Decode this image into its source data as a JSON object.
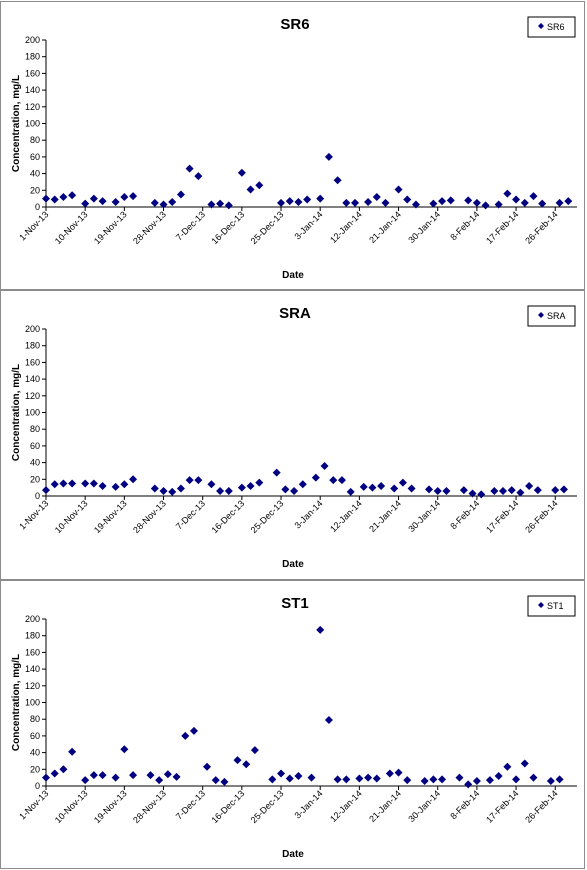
{
  "chart_data": [
    {
      "type": "scatter",
      "title": "SR6",
      "xlabel": "Date",
      "ylabel": "Concentration, mg/L",
      "ylim": [
        0,
        200
      ],
      "yticks": [
        0,
        20,
        40,
        60,
        80,
        100,
        120,
        140,
        160,
        180,
        200
      ],
      "xlim": [
        "1-Nov-13",
        "3-Mar-14"
      ],
      "xticks": [
        "1-Nov-13",
        "10-Nov-13",
        "19-Nov-13",
        "28-Nov-13",
        "7-Dec-13",
        "16-Dec-13",
        "25-Dec-13",
        "3-Jan-14",
        "12-Jan-14",
        "21-Jan-14",
        "30-Jan-14",
        "8-Feb-14",
        "17-Feb-14",
        "26-Feb-14"
      ],
      "grid": false,
      "legend_position": "top-right",
      "marker_color": "#000080",
      "series": [
        {
          "name": "SR6",
          "points": [
            {
              "x": "1-Nov-13",
              "y": 10
            },
            {
              "x": "3-Nov-13",
              "y": 9
            },
            {
              "x": "5-Nov-13",
              "y": 12
            },
            {
              "x": "7-Nov-13",
              "y": 14
            },
            {
              "x": "10-Nov-13",
              "y": 4
            },
            {
              "x": "12-Nov-13",
              "y": 10
            },
            {
              "x": "14-Nov-13",
              "y": 7
            },
            {
              "x": "17-Nov-13",
              "y": 6
            },
            {
              "x": "19-Nov-13",
              "y": 12
            },
            {
              "x": "21-Nov-13",
              "y": 13
            },
            {
              "x": "26-Nov-13",
              "y": 5
            },
            {
              "x": "28-Nov-13",
              "y": 3
            },
            {
              "x": "30-Nov-13",
              "y": 6
            },
            {
              "x": "2-Dec-13",
              "y": 15
            },
            {
              "x": "4-Dec-13",
              "y": 46
            },
            {
              "x": "6-Dec-13",
              "y": 37
            },
            {
              "x": "9-Dec-13",
              "y": 3
            },
            {
              "x": "11-Dec-13",
              "y": 4
            },
            {
              "x": "13-Dec-13",
              "y": 2
            },
            {
              "x": "16-Dec-13",
              "y": 41
            },
            {
              "x": "18-Dec-13",
              "y": 21
            },
            {
              "x": "20-Dec-13",
              "y": 26
            },
            {
              "x": "25-Dec-13",
              "y": 5
            },
            {
              "x": "27-Dec-13",
              "y": 7
            },
            {
              "x": "29-Dec-13",
              "y": 6
            },
            {
              "x": "31-Dec-13",
              "y": 9
            },
            {
              "x": "3-Jan-14",
              "y": 10
            },
            {
              "x": "5-Jan-14",
              "y": 60
            },
            {
              "x": "7-Jan-14",
              "y": 32
            },
            {
              "x": "9-Jan-14",
              "y": 5
            },
            {
              "x": "11-Jan-14",
              "y": 5
            },
            {
              "x": "14-Jan-14",
              "y": 6
            },
            {
              "x": "16-Jan-14",
              "y": 12
            },
            {
              "x": "18-Jan-14",
              "y": 5
            },
            {
              "x": "21-Jan-14",
              "y": 21
            },
            {
              "x": "23-Jan-14",
              "y": 9
            },
            {
              "x": "25-Jan-14",
              "y": 3
            },
            {
              "x": "29-Jan-14",
              "y": 4
            },
            {
              "x": "31-Jan-14",
              "y": 7
            },
            {
              "x": "2-Feb-14",
              "y": 8
            },
            {
              "x": "6-Feb-14",
              "y": 8
            },
            {
              "x": "8-Feb-14",
              "y": 5
            },
            {
              "x": "10-Feb-14",
              "y": 2
            },
            {
              "x": "13-Feb-14",
              "y": 3
            },
            {
              "x": "15-Feb-14",
              "y": 16
            },
            {
              "x": "17-Feb-14",
              "y": 9
            },
            {
              "x": "19-Feb-14",
              "y": 5
            },
            {
              "x": "21-Feb-14",
              "y": 13
            },
            {
              "x": "23-Feb-14",
              "y": 4
            },
            {
              "x": "27-Feb-14",
              "y": 5
            },
            {
              "x": "1-Mar-14",
              "y": 7
            }
          ]
        }
      ]
    },
    {
      "type": "scatter",
      "title": "SRA",
      "xlabel": "Date",
      "ylabel": "Concentration, mg/L",
      "ylim": [
        0,
        200
      ],
      "yticks": [
        0,
        20,
        40,
        60,
        80,
        100,
        120,
        140,
        160,
        180,
        200
      ],
      "xlim": [
        "1-Nov-13",
        "3-Mar-14"
      ],
      "xticks": [
        "1-Nov-13",
        "10-Nov-13",
        "19-Nov-13",
        "28-Nov-13",
        "7-Dec-13",
        "16-Dec-13",
        "25-Dec-13",
        "3-Jan-14",
        "12-Jan-14",
        "21-Jan-14",
        "30-Jan-14",
        "8-Feb-14",
        "17-Feb-14",
        "26-Feb-14"
      ],
      "grid": false,
      "legend_position": "top-right",
      "marker_color": "#000080",
      "series": [
        {
          "name": "SRA",
          "points": [
            {
              "x": "1-Nov-13",
              "y": 7
            },
            {
              "x": "3-Nov-13",
              "y": 14
            },
            {
              "x": "5-Nov-13",
              "y": 15
            },
            {
              "x": "7-Nov-13",
              "y": 15
            },
            {
              "x": "10-Nov-13",
              "y": 15
            },
            {
              "x": "12-Nov-13",
              "y": 15
            },
            {
              "x": "14-Nov-13",
              "y": 12
            },
            {
              "x": "17-Nov-13",
              "y": 11
            },
            {
              "x": "19-Nov-13",
              "y": 14
            },
            {
              "x": "21-Nov-13",
              "y": 20
            },
            {
              "x": "26-Nov-13",
              "y": 9
            },
            {
              "x": "28-Nov-13",
              "y": 6
            },
            {
              "x": "30-Nov-13",
              "y": 5
            },
            {
              "x": "2-Dec-13",
              "y": 9
            },
            {
              "x": "4-Dec-13",
              "y": 19
            },
            {
              "x": "6-Dec-13",
              "y": 19
            },
            {
              "x": "9-Dec-13",
              "y": 14
            },
            {
              "x": "11-Dec-13",
              "y": 6
            },
            {
              "x": "13-Dec-13",
              "y": 6
            },
            {
              "x": "16-Dec-13",
              "y": 10
            },
            {
              "x": "18-Dec-13",
              "y": 12
            },
            {
              "x": "20-Dec-13",
              "y": 16
            },
            {
              "x": "24-Dec-13",
              "y": 28
            },
            {
              "x": "26-Dec-13",
              "y": 8
            },
            {
              "x": "28-Dec-13",
              "y": 6
            },
            {
              "x": "30-Dec-13",
              "y": 14
            },
            {
              "x": "2-Jan-14",
              "y": 22
            },
            {
              "x": "4-Jan-14",
              "y": 36
            },
            {
              "x": "6-Jan-14",
              "y": 19
            },
            {
              "x": "8-Jan-14",
              "y": 19
            },
            {
              "x": "10-Jan-14",
              "y": 5
            },
            {
              "x": "13-Jan-14",
              "y": 11
            },
            {
              "x": "15-Jan-14",
              "y": 10
            },
            {
              "x": "17-Jan-14",
              "y": 12
            },
            {
              "x": "20-Jan-14",
              "y": 9
            },
            {
              "x": "22-Jan-14",
              "y": 16
            },
            {
              "x": "24-Jan-14",
              "y": 9
            },
            {
              "x": "28-Jan-14",
              "y": 8
            },
            {
              "x": "30-Jan-14",
              "y": 6
            },
            {
              "x": "1-Feb-14",
              "y": 6
            },
            {
              "x": "5-Feb-14",
              "y": 7
            },
            {
              "x": "7-Feb-14",
              "y": 3
            },
            {
              "x": "9-Feb-14",
              "y": 2
            },
            {
              "x": "12-Feb-14",
              "y": 6
            },
            {
              "x": "14-Feb-14",
              "y": 6
            },
            {
              "x": "16-Feb-14",
              "y": 7
            },
            {
              "x": "18-Feb-14",
              "y": 4
            },
            {
              "x": "20-Feb-14",
              "y": 12
            },
            {
              "x": "22-Feb-14",
              "y": 7
            },
            {
              "x": "26-Feb-14",
              "y": 7
            },
            {
              "x": "28-Feb-14",
              "y": 8
            }
          ]
        }
      ]
    },
    {
      "type": "scatter",
      "title": "ST1",
      "xlabel": "Date",
      "ylabel": "Concentration, mg/L",
      "ylim": [
        0,
        200
      ],
      "yticks": [
        0,
        20,
        40,
        60,
        80,
        100,
        120,
        140,
        160,
        180,
        200
      ],
      "xlim": [
        "1-Nov-13",
        "3-Mar-14"
      ],
      "xticks": [
        "1-Nov-13",
        "10-Nov-13",
        "19-Nov-13",
        "28-Nov-13",
        "7-Dec-13",
        "16-Dec-13",
        "25-Dec-13",
        "3-Jan-14",
        "12-Jan-14",
        "21-Jan-14",
        "30-Jan-14",
        "8-Feb-14",
        "17-Feb-14",
        "26-Feb-14"
      ],
      "grid": false,
      "legend_position": "top-right",
      "marker_color": "#000080",
      "series": [
        {
          "name": "ST1",
          "points": [
            {
              "x": "1-Nov-13",
              "y": 10
            },
            {
              "x": "3-Nov-13",
              "y": 15
            },
            {
              "x": "5-Nov-13",
              "y": 20
            },
            {
              "x": "7-Nov-13",
              "y": 41
            },
            {
              "x": "10-Nov-13",
              "y": 7
            },
            {
              "x": "12-Nov-13",
              "y": 13
            },
            {
              "x": "14-Nov-13",
              "y": 13
            },
            {
              "x": "17-Nov-13",
              "y": 10
            },
            {
              "x": "19-Nov-13",
              "y": 44
            },
            {
              "x": "21-Nov-13",
              "y": 13
            },
            {
              "x": "25-Nov-13",
              "y": 13
            },
            {
              "x": "27-Nov-13",
              "y": 7
            },
            {
              "x": "29-Nov-13",
              "y": 14
            },
            {
              "x": "1-Dec-13",
              "y": 11
            },
            {
              "x": "3-Dec-13",
              "y": 60
            },
            {
              "x": "5-Dec-13",
              "y": 66
            },
            {
              "x": "8-Dec-13",
              "y": 23
            },
            {
              "x": "10-Dec-13",
              "y": 7
            },
            {
              "x": "12-Dec-13",
              "y": 5
            },
            {
              "x": "15-Dec-13",
              "y": 31
            },
            {
              "x": "17-Dec-13",
              "y": 26
            },
            {
              "x": "19-Dec-13",
              "y": 43
            },
            {
              "x": "23-Dec-13",
              "y": 8
            },
            {
              "x": "25-Dec-13",
              "y": 15
            },
            {
              "x": "27-Dec-13",
              "y": 9
            },
            {
              "x": "29-Dec-13",
              "y": 12
            },
            {
              "x": "1-Jan-14",
              "y": 10
            },
            {
              "x": "3-Jan-14",
              "y": 187
            },
            {
              "x": "5-Jan-14",
              "y": 79
            },
            {
              "x": "7-Jan-14",
              "y": 8
            },
            {
              "x": "9-Jan-14",
              "y": 8
            },
            {
              "x": "12-Jan-14",
              "y": 9
            },
            {
              "x": "14-Jan-14",
              "y": 10
            },
            {
              "x": "16-Jan-14",
              "y": 9
            },
            {
              "x": "19-Jan-14",
              "y": 15
            },
            {
              "x": "21-Jan-14",
              "y": 16
            },
            {
              "x": "23-Jan-14",
              "y": 7
            },
            {
              "x": "27-Jan-14",
              "y": 6
            },
            {
              "x": "29-Jan-14",
              "y": 8
            },
            {
              "x": "31-Jan-14",
              "y": 8
            },
            {
              "x": "4-Feb-14",
              "y": 10
            },
            {
              "x": "6-Feb-14",
              "y": 2
            },
            {
              "x": "8-Feb-14",
              "y": 6
            },
            {
              "x": "11-Feb-14",
              "y": 7
            },
            {
              "x": "13-Feb-14",
              "y": 12
            },
            {
              "x": "15-Feb-14",
              "y": 23
            },
            {
              "x": "17-Feb-14",
              "y": 8
            },
            {
              "x": "19-Feb-14",
              "y": 27
            },
            {
              "x": "21-Feb-14",
              "y": 10
            },
            {
              "x": "25-Feb-14",
              "y": 6
            },
            {
              "x": "27-Feb-14",
              "y": 8
            }
          ]
        }
      ]
    }
  ]
}
